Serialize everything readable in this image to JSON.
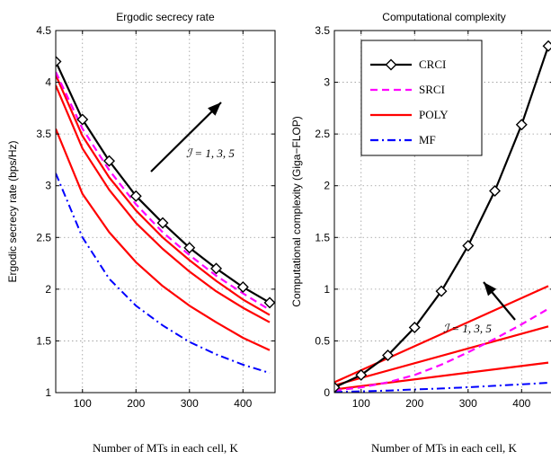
{
  "chart_data": [
    {
      "type": "line",
      "title": "Ergodic secrecy rate",
      "xlabel": "Number of MTs in each cell, K",
      "ylabel": "Ergodic secrecy rate (bps/Hz)",
      "xlim": [
        50,
        460
      ],
      "ylim": [
        1,
        4.5
      ],
      "xticks": [
        100,
        200,
        300,
        400
      ],
      "yticks": [
        1,
        1.5,
        2,
        2.5,
        3,
        3.5,
        4,
        4.5
      ],
      "grid": true,
      "annotation": {
        "text": "ℐ = 1, 3, 5"
      },
      "series": [
        {
          "style": "crci",
          "color": "#000000",
          "x": [
            50,
            100,
            150,
            200,
            250,
            300,
            350,
            400,
            450
          ],
          "y": [
            4.2,
            3.64,
            3.24,
            2.9,
            2.64,
            2.4,
            2.2,
            2.02,
            1.87
          ]
        },
        {
          "style": "srci",
          "color": "#ff00ff",
          "x": [
            50,
            100,
            150,
            200,
            250,
            300,
            350,
            400,
            450
          ],
          "y": [
            4.1,
            3.55,
            3.15,
            2.82,
            2.55,
            2.33,
            2.13,
            1.96,
            1.8
          ]
        },
        {
          "style": "poly",
          "color": "#ff0000",
          "x": [
            50,
            100,
            150,
            200,
            250,
            300,
            350,
            400,
            450
          ],
          "y": [
            4.07,
            3.48,
            3.08,
            2.76,
            2.5,
            2.28,
            2.08,
            1.9,
            1.75
          ]
        },
        {
          "style": "poly",
          "color": "#ff0000",
          "x": [
            50,
            100,
            150,
            200,
            250,
            300,
            350,
            400,
            450
          ],
          "y": [
            3.97,
            3.36,
            2.96,
            2.64,
            2.39,
            2.17,
            1.98,
            1.82,
            1.68
          ]
        },
        {
          "style": "poly",
          "color": "#ff0000",
          "x": [
            50,
            100,
            150,
            200,
            250,
            300,
            350,
            400,
            450
          ],
          "y": [
            3.55,
            2.92,
            2.55,
            2.26,
            2.03,
            1.84,
            1.68,
            1.53,
            1.41
          ]
        },
        {
          "style": "mf",
          "color": "#0000ff",
          "x": [
            50,
            100,
            150,
            200,
            250,
            300,
            350,
            400,
            450
          ],
          "y": [
            3.12,
            2.5,
            2.1,
            1.84,
            1.65,
            1.49,
            1.37,
            1.27,
            1.19
          ]
        }
      ]
    },
    {
      "type": "line",
      "title": "Computational complexity",
      "xlabel": "Number of MTs in each cell, K",
      "ylabel": "Computational complexity (Giga−FLOP)",
      "xlim": [
        50,
        460
      ],
      "ylim": [
        0,
        3.5
      ],
      "xticks": [
        100,
        200,
        300,
        400
      ],
      "yticks": [
        0,
        0.5,
        1,
        1.5,
        2,
        2.5,
        3,
        3.5
      ],
      "grid": true,
      "legend": {
        "placement": "top-left",
        "entries": [
          "CRCI",
          "SRCI",
          "POLY",
          "MF"
        ]
      },
      "annotation": {
        "text": "ℐ = 1, 3, 5"
      },
      "series": [
        {
          "name": "CRCI",
          "style": "crci",
          "color": "#000000",
          "x": [
            50,
            100,
            150,
            200,
            250,
            300,
            350,
            400,
            450
          ],
          "y": [
            0.05,
            0.17,
            0.36,
            0.63,
            0.98,
            1.42,
            1.95,
            2.59,
            3.35
          ]
        },
        {
          "name": "SRCI",
          "style": "srci",
          "color": "#ff00ff",
          "x": [
            50,
            100,
            150,
            200,
            250,
            300,
            350,
            400,
            450
          ],
          "y": [
            0.02,
            0.05,
            0.1,
            0.17,
            0.27,
            0.39,
            0.52,
            0.66,
            0.81
          ]
        },
        {
          "name": "POLY",
          "style": "poly",
          "color": "#ff0000",
          "x": [
            50,
            450
          ],
          "y": [
            0.1,
            1.03
          ]
        },
        {
          "style": "poly",
          "color": "#ff0000",
          "x": [
            50,
            450
          ],
          "y": [
            0.07,
            0.64
          ]
        },
        {
          "style": "poly",
          "color": "#ff0000",
          "x": [
            50,
            450
          ],
          "y": [
            0.03,
            0.29
          ]
        },
        {
          "name": "MF",
          "style": "mf",
          "color": "#0000ff",
          "x": [
            50,
            100,
            150,
            200,
            250,
            300,
            350,
            400,
            450
          ],
          "y": [
            0.005,
            0.012,
            0.02,
            0.03,
            0.04,
            0.052,
            0.066,
            0.08,
            0.095
          ]
        }
      ]
    }
  ]
}
